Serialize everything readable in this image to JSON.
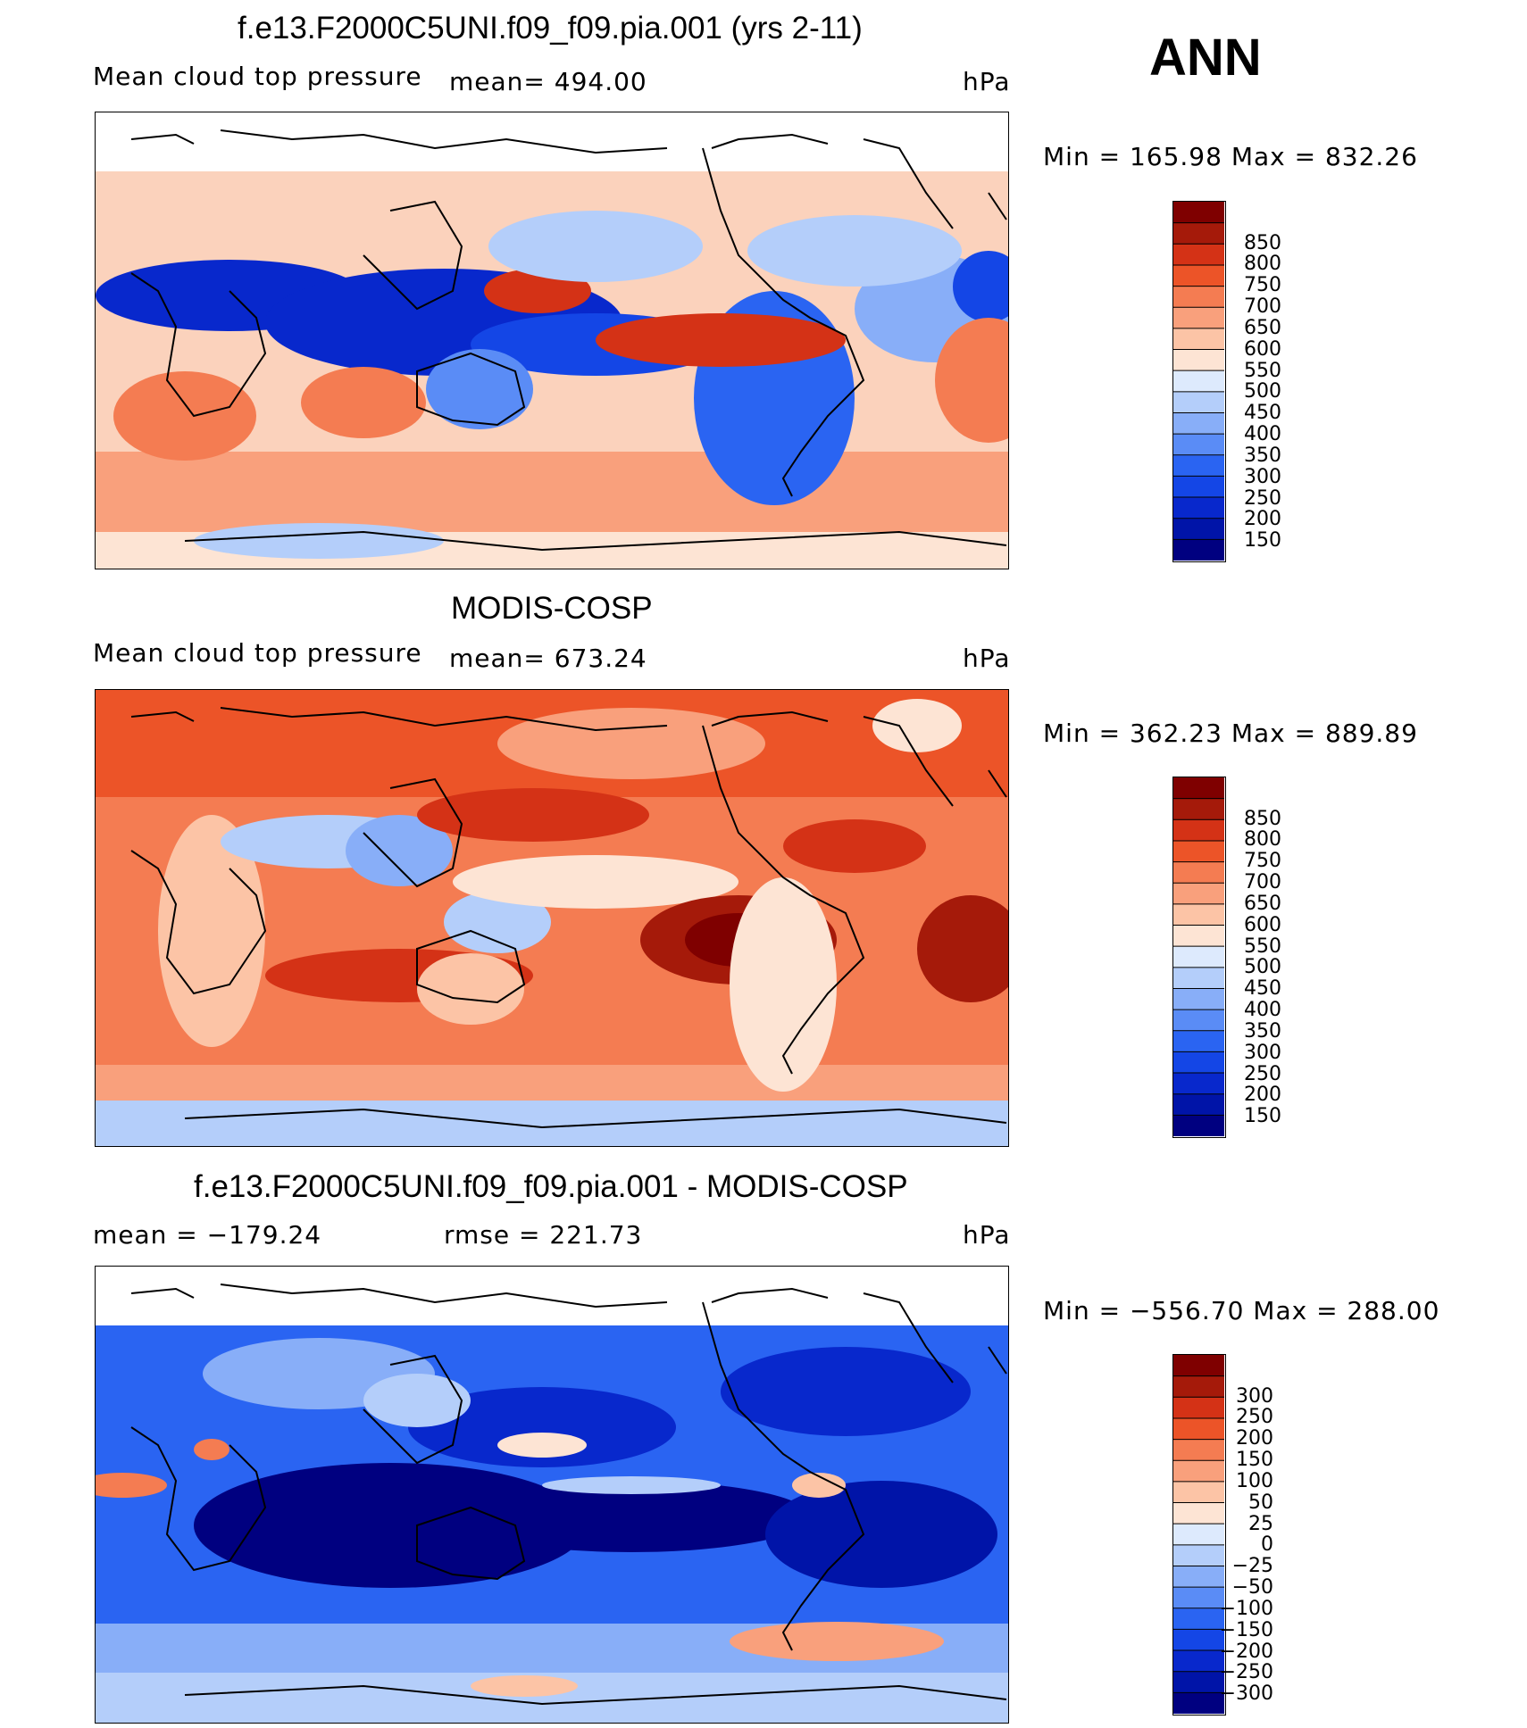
{
  "season": "ANN",
  "panels": [
    {
      "title": "f.e13.F2000C5UNI.f09_f09.pia.001 (yrs 2-11)",
      "left_sub": "Mean cloud top pressure",
      "center_sub": "mean= 494.00",
      "units": "hPa",
      "minmax": "Min = 165.98 Max = 832.26"
    },
    {
      "title": "MODIS-COSP",
      "left_sub": "Mean cloud top pressure",
      "center_sub": "mean= 673.24",
      "units": "hPa",
      "minmax": "Min = 362.23 Max = 889.89"
    },
    {
      "title": "f.e13.F2000C5UNI.f09_f09.pia.001 - MODIS-COSP",
      "left_sub": "mean = −179.24",
      "center_sub": "rmse = 221.73",
      "units": "hPa",
      "minmax": "Min = −556.70 Max = 288.00"
    }
  ],
  "chart_data": [
    {
      "type": "heatmap",
      "title": "f.e13.F2000C5UNI.f09_f09.pia.001 (yrs 2-11)",
      "variable": "Mean cloud top pressure",
      "units": "hPa",
      "mean": 494.0,
      "min": 165.98,
      "max": 832.26,
      "colorbar_levels": [
        150,
        200,
        250,
        300,
        350,
        400,
        450,
        500,
        550,
        600,
        650,
        700,
        750,
        800,
        850
      ],
      "colorbar_colors": [
        "#000080",
        "#0014a8",
        "#0828cc",
        "#1446e6",
        "#2a64f2",
        "#5a8cf6",
        "#88aef8",
        "#b4cefa",
        "#ddeafd",
        "#fde4d4",
        "#fcc4a6",
        "#f9a07c",
        "#f47c52",
        "#ec5428",
        "#d43216",
        "#a51a0a",
        "#7f0000"
      ]
    },
    {
      "type": "heatmap",
      "title": "MODIS-COSP",
      "variable": "Mean cloud top pressure",
      "units": "hPa",
      "mean": 673.24,
      "min": 362.23,
      "max": 889.89,
      "colorbar_levels": [
        150,
        200,
        250,
        300,
        350,
        400,
        450,
        500,
        550,
        600,
        650,
        700,
        750,
        800,
        850
      ],
      "colorbar_colors": [
        "#000080",
        "#0014a8",
        "#0828cc",
        "#1446e6",
        "#2a64f2",
        "#5a8cf6",
        "#88aef8",
        "#b4cefa",
        "#ddeafd",
        "#fde4d4",
        "#fcc4a6",
        "#f9a07c",
        "#f47c52",
        "#ec5428",
        "#d43216",
        "#a51a0a",
        "#7f0000"
      ]
    },
    {
      "type": "heatmap",
      "title": "f.e13.F2000C5UNI.f09_f09.pia.001 - MODIS-COSP",
      "units": "hPa",
      "mean": -179.24,
      "rmse": 221.73,
      "min": -556.7,
      "max": 288.0,
      "colorbar_levels": [
        -300,
        -250,
        -200,
        -150,
        -100,
        -50,
        -25,
        0,
        25,
        50,
        100,
        150,
        200,
        250,
        300
      ],
      "colorbar_labels": [
        "−300",
        "−250",
        "−200",
        "−150",
        "−100",
        "−50",
        "−25",
        "0",
        "25",
        "50",
        "100",
        "150",
        "200",
        "250",
        "300"
      ],
      "colorbar_colors": [
        "#000080",
        "#0014a8",
        "#0828cc",
        "#1446e6",
        "#2a64f2",
        "#5a8cf6",
        "#88aef8",
        "#b4cefa",
        "#ddeafd",
        "#fde4d4",
        "#fcc4a6",
        "#f9a07c",
        "#f47c52",
        "#ec5428",
        "#d43216",
        "#a51a0a",
        "#7f0000"
      ]
    }
  ]
}
